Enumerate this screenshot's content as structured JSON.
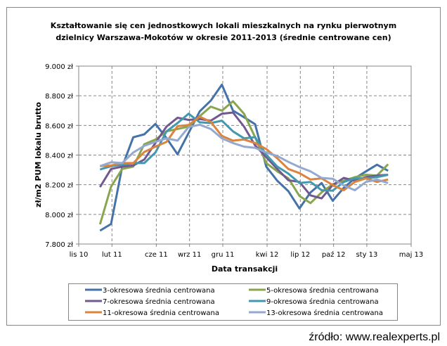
{
  "chart_data": {
    "type": "line",
    "title": [
      "Kształtowanie się cen jednostkowych lokali mieszkalnych  na rynku pierwotnym",
      "dzielnicy  Warszawa-Mokotów  w okresie 2011-2013 (średnie centrowane cen)"
    ],
    "xlabel": "Data transakcji",
    "ylabel": "zł/m2 PUM lokalu brutto",
    "ylim": [
      7800,
      9000
    ],
    "xlim": [
      "2010-11",
      "2013-05"
    ],
    "grid": true,
    "legend_position": "bottom",
    "y_ticks": [
      "7.800 zł",
      "8.000 zł",
      "8.200 zł",
      "8.400 zł",
      "8.600 zł",
      "8.800 zł",
      "9.000 zł"
    ],
    "x_ticks": [
      {
        "label": "lis 10",
        "date": "2010-11"
      },
      {
        "label": "lut 11",
        "date": "2011-02"
      },
      {
        "label": "cze 11",
        "date": "2011-06"
      },
      {
        "label": "wrz 11",
        "date": "2011-09"
      },
      {
        "label": "gru 11",
        "date": "2011-12"
      },
      {
        "label": "kwi 12",
        "date": "2012-04"
      },
      {
        "label": "lip 12",
        "date": "2012-07"
      },
      {
        "label": "paź 12",
        "date": "2012-10"
      },
      {
        "label": "sty 13",
        "date": "2013-01"
      },
      {
        "label": "maj 13",
        "date": "2013-05"
      }
    ],
    "x": [
      "2011-01",
      "2011-02",
      "2011-03",
      "2011-04",
      "2011-05",
      "2011-06",
      "2011-07",
      "2011-08",
      "2011-09",
      "2011-10",
      "2011-11",
      "2011-12",
      "2012-01",
      "2012-02",
      "2012-03",
      "2012-04",
      "2012-05",
      "2012-06",
      "2012-07",
      "2012-08",
      "2012-09",
      "2012-10",
      "2012-11",
      "2012-12",
      "2013-01",
      "2013-02",
      "2013-03"
    ],
    "series": [
      {
        "name": "3-okresowa średnia centrowana",
        "color": "#4572A7",
        "values": [
          7890,
          7935,
          8320,
          8520,
          8540,
          8610,
          8515,
          8405,
          8550,
          8695,
          8767,
          8875,
          8700,
          8655,
          8608,
          8322,
          8227,
          8156,
          8040,
          8148,
          8211,
          8092,
          8179,
          8243,
          8290,
          8335,
          8294
        ]
      },
      {
        "name": "5-okresowa średnia centrowana",
        "color": "#89A54E",
        "values": [
          7933,
          8187,
          8306,
          8322,
          8473,
          8505,
          8560,
          8576,
          8592,
          8663,
          8727,
          8700,
          8763,
          8679,
          8520,
          8346,
          8290,
          8243,
          8124,
          8076,
          8148,
          8203,
          8227,
          8251,
          8267,
          8262,
          8338
        ]
      },
      {
        "name": "7-okresowa średnia centrowana",
        "color": "#71588F",
        "values": [
          8184,
          8306,
          8322,
          8330,
          8370,
          8481,
          8592,
          8652,
          8637,
          8643,
          8632,
          8679,
          8687,
          8592,
          8465,
          8386,
          8306,
          8230,
          8219,
          8128,
          8108,
          8198,
          8246,
          8227,
          8251,
          8262,
          8267
        ]
      },
      {
        "name": "9-okresowa średnia centrowana",
        "color": "#4198AF",
        "values": [
          8303,
          8325,
          8335,
          8346,
          8346,
          8417,
          8560,
          8616,
          8679,
          8621,
          8616,
          8632,
          8560,
          8513,
          8521,
          8403,
          8322,
          8275,
          8211,
          8219,
          8163,
          8160,
          8219,
          8243,
          8243,
          8251,
          8267
        ]
      },
      {
        "name": "11-okresowa średnia centrowana",
        "color": "#DB843D",
        "values": [
          8325,
          8330,
          8346,
          8346,
          8421,
          8457,
          8489,
          8595,
          8603,
          8659,
          8624,
          8529,
          8497,
          8505,
          8481,
          8441,
          8378,
          8306,
          8278,
          8235,
          8243,
          8198,
          8163,
          8219,
          8243,
          8219,
          8235
        ]
      },
      {
        "name": "13-okresowa średnia centrowana",
        "color": "#93A9CF",
        "values": [
          8325,
          8351,
          8346,
          8417,
          8462,
          8489,
          8513,
          8497,
          8589,
          8605,
          8576,
          8513,
          8481,
          8457,
          8449,
          8417,
          8394,
          8354,
          8319,
          8290,
          8246,
          8240,
          8195,
          8163,
          8219,
          8235,
          8211
        ]
      }
    ]
  },
  "source": "źródło: www.realexperts.pl"
}
